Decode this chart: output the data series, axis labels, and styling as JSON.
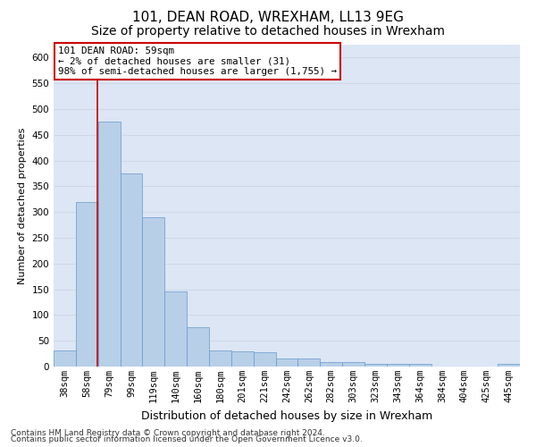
{
  "title": "101, DEAN ROAD, WREXHAM, LL13 9EG",
  "subtitle": "Size of property relative to detached houses in Wrexham",
  "xlabel": "Distribution of detached houses by size in Wrexham",
  "ylabel": "Number of detached properties",
  "bar_values": [
    32,
    320,
    475,
    375,
    290,
    145,
    76,
    32,
    30,
    27,
    16,
    16,
    8,
    8,
    5,
    5,
    5,
    0,
    0,
    0,
    5
  ],
  "categories": [
    "38sqm",
    "58sqm",
    "79sqm",
    "99sqm",
    "119sqm",
    "140sqm",
    "160sqm",
    "180sqm",
    "201sqm",
    "221sqm",
    "242sqm",
    "262sqm",
    "282sqm",
    "303sqm",
    "323sqm",
    "343sqm",
    "364sqm",
    "384sqm",
    "404sqm",
    "425sqm",
    "445sqm"
  ],
  "bar_color": "#b8cfe8",
  "bar_edge_color": "#6699cc",
  "annotation_line_color": "#cc0000",
  "annotation_box_text": "101 DEAN ROAD: 59sqm\n← 2% of detached houses are smaller (31)\n98% of semi-detached houses are larger (1,755) →",
  "annotation_box_color": "#ffffff",
  "annotation_box_edge_color": "#cc0000",
  "ylim": [
    0,
    625
  ],
  "yticks": [
    0,
    50,
    100,
    150,
    200,
    250,
    300,
    350,
    400,
    450,
    500,
    550,
    600
  ],
  "grid_color": "#d0d8e8",
  "bg_color": "#dce6f5",
  "footer_line1": "Contains HM Land Registry data © Crown copyright and database right 2024.",
  "footer_line2": "Contains public sector information licensed under the Open Government Licence v3.0.",
  "title_fontsize": 11,
  "subtitle_fontsize": 10,
  "xlabel_fontsize": 9,
  "ylabel_fontsize": 8,
  "tick_fontsize": 7.5,
  "footer_fontsize": 6.5
}
